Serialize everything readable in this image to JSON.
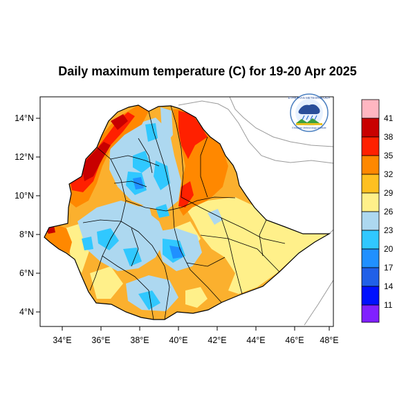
{
  "title": "Daily maximum temperature (C) for 19-20 Apr 2025",
  "axes": {
    "x_ticks": [
      "34°E",
      "36°E",
      "38°E",
      "40°E",
      "42°E",
      "44°E",
      "46°E",
      "48°E"
    ],
    "y_ticks": [
      "14°N",
      "12°N",
      "10°N",
      "8°N",
      "6°N",
      "4°N"
    ]
  },
  "colorbar": {
    "labels": [
      "41",
      "38",
      "35",
      "32",
      "29",
      "26",
      "23",
      "20",
      "17",
      "14",
      "11"
    ],
    "colors": [
      "#ffb6c1",
      "#c80000",
      "#ff2000",
      "#ff8800",
      "#ffc020",
      "#fff08a",
      "#add8f0",
      "#30c8ff",
      "#2090ff",
      "#2060e8",
      "#0010ff",
      "#8020ff"
    ]
  },
  "logo": {
    "name": "ethiopian-meteorology-institute-logo",
    "text": "Ethiopian Meteorology Institute"
  },
  "colors": {
    "country_fill_base": "#fbb02e",
    "neighbor_border": "#9a9a9a",
    "admin_border": "#000000"
  }
}
